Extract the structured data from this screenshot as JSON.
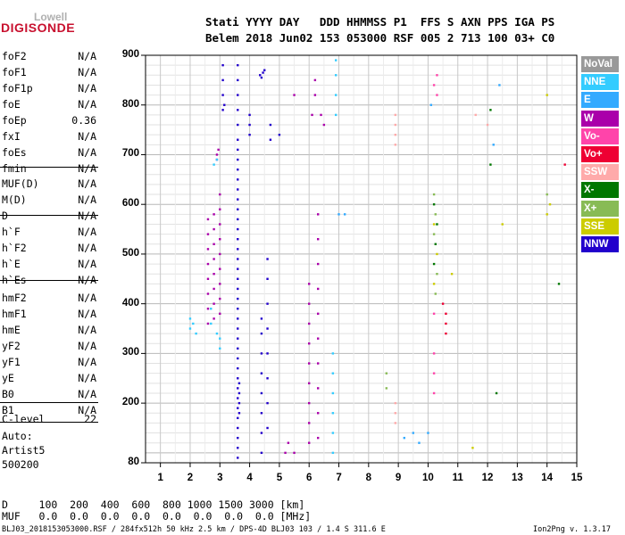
{
  "logo": {
    "brand": "Lowell",
    "product": "DIGISONDE"
  },
  "header": {
    "line1": "Stati YYYY DAY   DDD HHMMSS P1  FFS S AXN PPS IGA PS",
    "line2": "Belem 2018 Jun02 153 053000 RSF 005 2 713 100 03+ C0"
  },
  "params": [
    {
      "label": "foF2",
      "value": "N/A"
    },
    {
      "label": "foF1",
      "value": "N/A"
    },
    {
      "label": "foF1p",
      "value": "N/A"
    },
    {
      "label": "foE",
      "value": "N/A"
    },
    {
      "label": "foEp",
      "value": "0.36"
    },
    {
      "label": "fxI",
      "value": "N/A"
    },
    {
      "label": "foEs",
      "value": "N/A"
    },
    {
      "label": "fmin",
      "value": "N/A"
    },
    {
      "label": "MUF(D)",
      "value": "N/A"
    },
    {
      "label": "M(D)",
      "value": "N/A"
    },
    {
      "label": "D",
      "value": "N/A"
    },
    {
      "label": "h`F",
      "value": "N/A"
    },
    {
      "label": "h`F2",
      "value": "N/A"
    },
    {
      "label": "h`E",
      "value": "N/A"
    },
    {
      "label": "h`Es",
      "value": "N/A"
    },
    {
      "label": "hmF2",
      "value": "N/A"
    },
    {
      "label": "hmF1",
      "value": "N/A"
    },
    {
      "label": "hmE",
      "value": "N/A"
    },
    {
      "label": "yF2",
      "value": "N/A"
    },
    {
      "label": "yF1",
      "value": "N/A"
    },
    {
      "label": "yE",
      "value": "N/A"
    },
    {
      "label": "B0",
      "value": "N/A"
    },
    {
      "label": "B1",
      "value": "N/A"
    },
    {
      "label": "C-level",
      "value": "22"
    }
  ],
  "auto_info": {
    "line1": "Auto:",
    "line2": "Artist5",
    "line3": "500200"
  },
  "footer": {
    "d_row": "D     100  200  400  600  800 1000 1500 3000 [km]",
    "muf_row": "MUF   0.0  0.0  0.0  0.0  0.0  0.0  0.0  0.0 [MHz]",
    "file_info": "BLJ03_2018153053000.RSF / 284fx512h 50 kHz 2.5 km / DPS-4D BLJ03 103 / 1.4 S 311.6 E",
    "version": "Ion2Png v. 1.3.17"
  },
  "legend": [
    {
      "label": "NoVal",
      "color": "#999999"
    },
    {
      "label": "NNE",
      "color": "#33ccff"
    },
    {
      "label": "E",
      "color": "#33aaff"
    },
    {
      "label": "W",
      "color": "#aa00aa"
    },
    {
      "label": "Vo-",
      "color": "#ff44aa"
    },
    {
      "label": "Vo+",
      "color": "#ee0033"
    },
    {
      "label": "SSW",
      "color": "#ffaaaa"
    },
    {
      "label": "X-",
      "color": "#007700"
    },
    {
      "label": "X+",
      "color": "#88bb55"
    },
    {
      "label": "SSE",
      "color": "#cccc00"
    },
    {
      "label": "NNW",
      "color": "#2200cc"
    }
  ],
  "chart_data": {
    "type": "scatter",
    "xlim": [
      0.5,
      15.0
    ],
    "ylim": [
      80,
      900
    ],
    "x_ticks": [
      1,
      2,
      3,
      4,
      5,
      6,
      7,
      8,
      9,
      10,
      11,
      12,
      13,
      14,
      15
    ],
    "y_ticks": [
      80,
      200,
      300,
      400,
      500,
      600,
      700,
      800,
      900
    ],
    "grid": true,
    "series": [
      {
        "name": "NNW",
        "color": "#2200cc",
        "points": [
          [
            3.6,
            90
          ],
          [
            3.6,
            110
          ],
          [
            3.6,
            130
          ],
          [
            3.6,
            150
          ],
          [
            3.6,
            170
          ],
          [
            3.6,
            190
          ],
          [
            3.6,
            210
          ],
          [
            3.6,
            230
          ],
          [
            3.6,
            250
          ],
          [
            3.6,
            270
          ],
          [
            3.6,
            290
          ],
          [
            3.6,
            310
          ],
          [
            3.6,
            330
          ],
          [
            3.6,
            350
          ],
          [
            3.6,
            370
          ],
          [
            3.6,
            390
          ],
          [
            3.6,
            410
          ],
          [
            3.6,
            430
          ],
          [
            3.6,
            450
          ],
          [
            3.6,
            470
          ],
          [
            3.6,
            490
          ],
          [
            3.6,
            510
          ],
          [
            3.6,
            530
          ],
          [
            3.6,
            550
          ],
          [
            3.6,
            570
          ],
          [
            3.6,
            590
          ],
          [
            3.6,
            610
          ],
          [
            3.6,
            630
          ],
          [
            3.6,
            650
          ],
          [
            3.6,
            670
          ],
          [
            3.6,
            690
          ],
          [
            3.6,
            710
          ],
          [
            3.6,
            730
          ],
          [
            3.6,
            760
          ],
          [
            3.6,
            790
          ],
          [
            3.6,
            820
          ],
          [
            3.6,
            850
          ],
          [
            3.6,
            880
          ],
          [
            3.65,
            180
          ],
          [
            3.65,
            200
          ],
          [
            3.65,
            220
          ],
          [
            3.65,
            240
          ],
          [
            4.4,
            100
          ],
          [
            4.4,
            140
          ],
          [
            4.4,
            180
          ],
          [
            4.4,
            220
          ],
          [
            4.4,
            260
          ],
          [
            4.4,
            300
          ],
          [
            4.4,
            340
          ],
          [
            4.4,
            370
          ],
          [
            4.35,
            860
          ],
          [
            4.45,
            865
          ],
          [
            4.5,
            870
          ],
          [
            4.4,
            855
          ],
          [
            4.6,
            150
          ],
          [
            4.6,
            200
          ],
          [
            4.6,
            250
          ],
          [
            4.6,
            300
          ],
          [
            4.6,
            350
          ],
          [
            4.6,
            400
          ],
          [
            4.6,
            450
          ],
          [
            4.6,
            490
          ],
          [
            3.1,
            790
          ],
          [
            3.1,
            820
          ],
          [
            3.1,
            850
          ],
          [
            3.1,
            880
          ],
          [
            3.15,
            800
          ],
          [
            4.0,
            740
          ],
          [
            4.0,
            760
          ],
          [
            4.0,
            780
          ],
          [
            4.7,
            730
          ],
          [
            4.7,
            760
          ],
          [
            5.0,
            740
          ]
        ]
      },
      {
        "name": "W",
        "color": "#aa00aa",
        "points": [
          [
            2.6,
            360
          ],
          [
            2.6,
            390
          ],
          [
            2.6,
            420
          ],
          [
            2.6,
            450
          ],
          [
            2.6,
            480
          ],
          [
            2.6,
            510
          ],
          [
            2.6,
            540
          ],
          [
            2.6,
            570
          ],
          [
            2.8,
            370
          ],
          [
            2.8,
            400
          ],
          [
            2.8,
            430
          ],
          [
            2.8,
            460
          ],
          [
            2.8,
            490
          ],
          [
            2.8,
            520
          ],
          [
            2.8,
            550
          ],
          [
            2.8,
            580
          ],
          [
            3.0,
            380
          ],
          [
            3.0,
            410
          ],
          [
            3.0,
            440
          ],
          [
            3.0,
            470
          ],
          [
            3.0,
            500
          ],
          [
            3.0,
            530
          ],
          [
            3.0,
            560
          ],
          [
            3.0,
            590
          ],
          [
            3.0,
            620
          ],
          [
            2.9,
            700
          ],
          [
            2.95,
            710
          ],
          [
            2.9,
            690
          ],
          [
            6.0,
            120
          ],
          [
            6.0,
            160
          ],
          [
            6.0,
            200
          ],
          [
            6.0,
            240
          ],
          [
            6.0,
            280
          ],
          [
            6.0,
            320
          ],
          [
            6.0,
            360
          ],
          [
            6.0,
            400
          ],
          [
            6.0,
            440
          ],
          [
            6.3,
            130
          ],
          [
            6.3,
            180
          ],
          [
            6.3,
            230
          ],
          [
            6.3,
            280
          ],
          [
            6.3,
            330
          ],
          [
            6.3,
            380
          ],
          [
            6.3,
            430
          ],
          [
            6.3,
            480
          ],
          [
            6.3,
            530
          ],
          [
            6.3,
            580
          ],
          [
            6.1,
            780
          ],
          [
            6.2,
            820
          ],
          [
            6.2,
            850
          ],
          [
            6.4,
            780
          ],
          [
            6.5,
            760
          ],
          [
            5.5,
            820
          ],
          [
            5.2,
            100
          ],
          [
            5.3,
            120
          ],
          [
            5.5,
            100
          ]
        ]
      },
      {
        "name": "NNE",
        "color": "#33ccff",
        "points": [
          [
            2.0,
            350
          ],
          [
            2.1,
            360
          ],
          [
            2.0,
            370
          ],
          [
            2.2,
            340
          ],
          [
            2.7,
            390
          ],
          [
            2.7,
            360
          ],
          [
            2.9,
            340
          ],
          [
            3.0,
            330
          ],
          [
            3.0,
            310
          ],
          [
            2.8,
            680
          ],
          [
            2.9,
            690
          ],
          [
            6.8,
            100
          ],
          [
            6.8,
            140
          ],
          [
            6.8,
            180
          ],
          [
            6.8,
            220
          ],
          [
            6.8,
            260
          ],
          [
            6.8,
            300
          ],
          [
            6.9,
            780
          ],
          [
            6.9,
            820
          ],
          [
            6.9,
            860
          ],
          [
            6.9,
            890
          ]
        ]
      },
      {
        "name": "Vo-",
        "color": "#ff44aa",
        "points": [
          [
            10.2,
            220
          ],
          [
            10.2,
            260
          ],
          [
            10.2,
            300
          ],
          [
            10.2,
            380
          ],
          [
            10.3,
            820
          ],
          [
            10.2,
            840
          ],
          [
            10.3,
            860
          ]
        ]
      },
      {
        "name": "Vo+",
        "color": "#ee0033",
        "points": [
          [
            10.6,
            340
          ],
          [
            10.6,
            360
          ],
          [
            10.6,
            380
          ],
          [
            10.5,
            400
          ],
          [
            14.6,
            680
          ]
        ]
      },
      {
        "name": "SSW",
        "color": "#ffaaaa",
        "points": [
          [
            8.9,
            720
          ],
          [
            8.9,
            740
          ],
          [
            8.9,
            760
          ],
          [
            8.9,
            780
          ],
          [
            8.9,
            200
          ],
          [
            8.9,
            180
          ],
          [
            8.9,
            160
          ],
          [
            11.6,
            780
          ],
          [
            12.0,
            760
          ]
        ]
      },
      {
        "name": "X-",
        "color": "#007700",
        "points": [
          [
            10.2,
            480
          ],
          [
            10.25,
            520
          ],
          [
            10.3,
            560
          ],
          [
            10.2,
            600
          ],
          [
            12.1,
            680
          ],
          [
            12.1,
            790
          ],
          [
            12.3,
            220
          ],
          [
            14.4,
            440
          ]
        ]
      },
      {
        "name": "X+",
        "color": "#88bb55",
        "points": [
          [
            10.25,
            420
          ],
          [
            10.3,
            460
          ],
          [
            10.2,
            540
          ],
          [
            10.25,
            580
          ],
          [
            10.2,
            620
          ],
          [
            14.0,
            620
          ],
          [
            8.6,
            260
          ],
          [
            8.6,
            230
          ]
        ]
      },
      {
        "name": "SSE",
        "color": "#cccc00",
        "points": [
          [
            10.2,
            440
          ],
          [
            10.3,
            500
          ],
          [
            10.2,
            560
          ],
          [
            14.0,
            580
          ],
          [
            14.1,
            600
          ],
          [
            14.0,
            820
          ],
          [
            12.5,
            560
          ],
          [
            10.8,
            460
          ],
          [
            11.5,
            110
          ]
        ]
      },
      {
        "name": "E",
        "color": "#33aaff",
        "points": [
          [
            9.2,
            130
          ],
          [
            9.5,
            140
          ],
          [
            9.7,
            120
          ],
          [
            10.0,
            140
          ],
          [
            12.4,
            840
          ],
          [
            12.2,
            720
          ],
          [
            7.2,
            580
          ],
          [
            7.0,
            580
          ],
          [
            10.1,
            800
          ]
        ]
      }
    ]
  }
}
